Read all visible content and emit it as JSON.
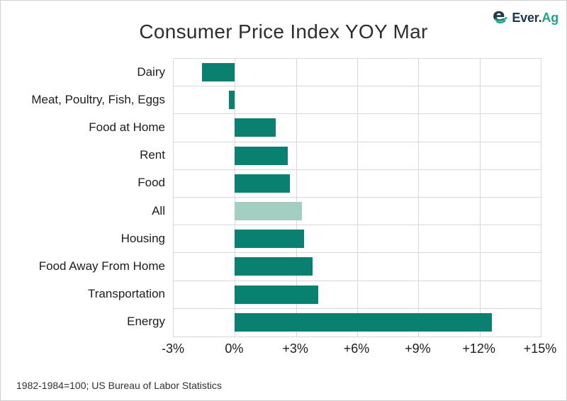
{
  "page": {
    "title": "Consumer Price Index YOY Mar",
    "footer": "1982-1984=100; US Bureau of Labor Statistics"
  },
  "logo": {
    "icon": "e-globe-icon",
    "brand_primary": "Ever.",
    "brand_secondary": "Ag",
    "navy": "#20384c",
    "teal": "#1aa589"
  },
  "colors": {
    "bar": "#0a8170",
    "bar_highlight": "#a3cfc2",
    "gridline": "#d8d8d8",
    "text": "#1c1c1c"
  },
  "chart_data": {
    "type": "bar",
    "orientation": "horizontal",
    "title": "Consumer Price Index YOY Mar",
    "categories": [
      "Dairy",
      "Meat, Poultry, Fish, Eggs",
      "Food at Home",
      "Rent",
      "Food",
      "All",
      "Housing",
      "Food Away From Home",
      "Transportation",
      "Energy"
    ],
    "values": [
      -1.6,
      -0.3,
      2.0,
      2.6,
      2.7,
      3.3,
      3.4,
      3.8,
      4.1,
      12.6
    ],
    "unit": "%",
    "highlighted_category": "All",
    "highlight_note": "All bar is rendered in light green, others in dark teal",
    "xlim": [
      -3,
      15
    ],
    "ticks": [
      -3,
      0,
      3,
      6,
      9,
      12,
      15
    ],
    "tick_labels": [
      "-3%",
      "0%",
      "+3%",
      "+6%",
      "+9%",
      "+12%",
      "+15%"
    ],
    "grid": true,
    "legend": false,
    "source_note": "1982-1984=100; US Bureau of Labor Statistics"
  }
}
